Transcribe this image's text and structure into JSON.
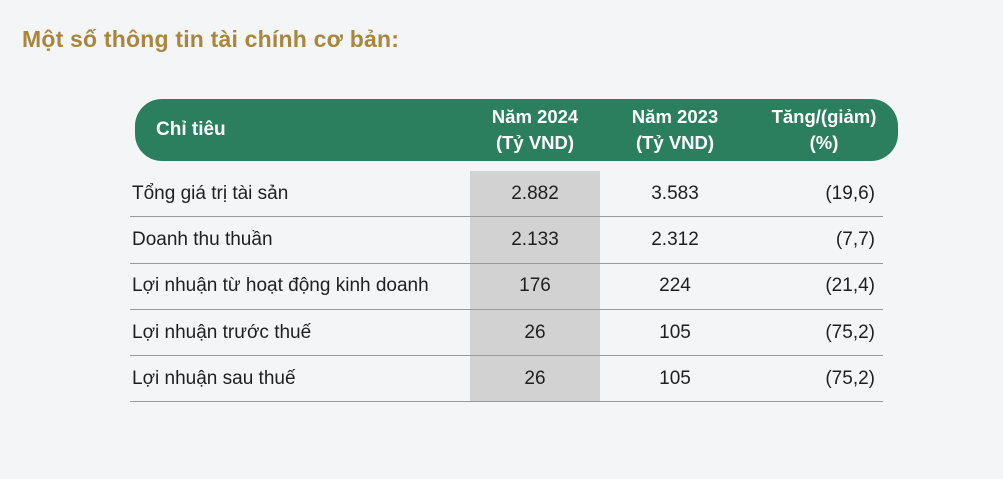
{
  "title": "Một số thông tin tài chính cơ bản:",
  "colors": {
    "page_bg": "#f4f5f6",
    "title_color": "#a8873d",
    "header_bg": "#2b7f5f",
    "header_text": "#ffffff",
    "highlight_col": "#d2d2d2",
    "row_line": "#9a9a9a",
    "body_text": "#1f1f1f"
  },
  "table": {
    "columns": [
      {
        "key": "label",
        "header_line1": "Chỉ tiêu",
        "header_line2": ""
      },
      {
        "key": "y2024",
        "header_line1": "Năm 2024",
        "header_line2": "(Tỷ VND)"
      },
      {
        "key": "y2023",
        "header_line1": "Năm 2023",
        "header_line2": "(Tỷ VND)"
      },
      {
        "key": "change",
        "header_line1": "Tăng/(giảm)",
        "header_line2": "(%)"
      }
    ],
    "rows": [
      {
        "label": "Tổng giá trị tài sản",
        "y2024": "2.882",
        "y2023": "3.583",
        "change": "(19,6)"
      },
      {
        "label": "Doanh thu thuần",
        "y2024": "2.133",
        "y2023": "2.312",
        "change": "(7,7)"
      },
      {
        "label": "Lợi nhuận từ hoạt động kinh doanh",
        "y2024": "176",
        "y2023": "224",
        "change": "(21,4)"
      },
      {
        "label": "Lợi nhuận trước thuế",
        "y2024": "26",
        "y2023": "105",
        "change": "(75,2)"
      },
      {
        "label": "Lợi nhuận sau thuế",
        "y2024": "26",
        "y2023": "105",
        "change": "(75,2)"
      }
    ]
  }
}
